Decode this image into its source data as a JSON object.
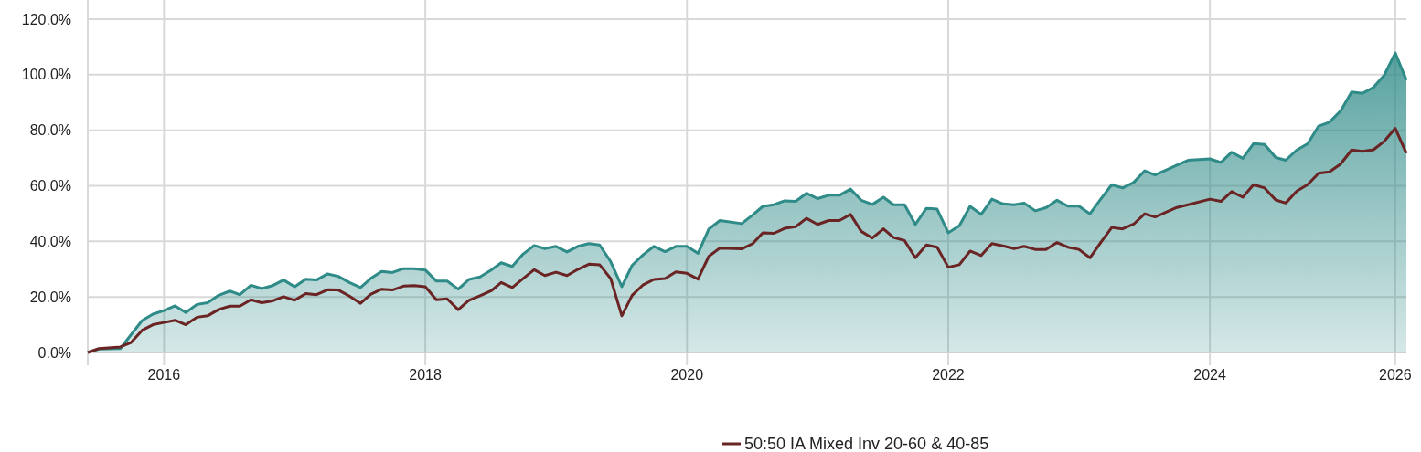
{
  "chart_data": {
    "type": "line",
    "x": [
      "2016-01",
      "2016-02",
      "2016-04",
      "2016-05",
      "2016-06",
      "2016-07",
      "2016-08",
      "2016-09",
      "2016-10",
      "2016-11",
      "2016-12",
      "2017-01",
      "2017-02",
      "2017-03",
      "2017-04",
      "2017-05",
      "2017-06",
      "2017-07",
      "2017-08",
      "2017-09",
      "2017-10",
      "2017-11",
      "2017-12",
      "2018-01",
      "2018-02",
      "2018-03",
      "2018-04",
      "2018-05",
      "2018-06",
      "2018-07",
      "2018-08",
      "2018-09",
      "2018-10",
      "2018-11",
      "2018-12",
      "2019-01",
      "2019-02",
      "2019-03",
      "2019-04",
      "2019-05",
      "2019-06",
      "2019-07",
      "2019-08",
      "2019-09",
      "2019-10",
      "2019-11",
      "2019-12",
      "2020-01",
      "2020-02",
      "2020-03",
      "2020-04",
      "2020-05",
      "2020-06",
      "2020-07",
      "2020-08",
      "2020-09",
      "2020-10",
      "2020-11",
      "2021-01",
      "2021-02",
      "2021-03",
      "2021-04",
      "2021-05",
      "2021-06",
      "2021-07",
      "2021-08",
      "2021-09",
      "2021-10",
      "2021-11",
      "2021-12",
      "2022-01",
      "2022-02",
      "2022-03",
      "2022-04",
      "2022-05",
      "2022-06",
      "2022-07",
      "2022-08",
      "2022-09",
      "2022-10",
      "2022-11",
      "2022-12",
      "2023-01",
      "2023-02",
      "2023-03",
      "2023-04",
      "2023-05",
      "2023-06",
      "2023-07",
      "2023-08",
      "2023-09",
      "2023-10",
      "2023-11",
      "2023-12",
      "2024-01",
      "2024-02",
      "2024-03",
      "2024-05",
      "2024-06",
      "2024-08",
      "2024-09",
      "2024-10",
      "2024-11",
      "2024-12",
      "2025-01",
      "2025-02",
      "2025-03",
      "2025-04",
      "2025-05",
      "2025-06",
      "2025-07",
      "2025-08",
      "2025-09",
      "2025-10",
      "2025-11",
      "2025-12",
      "2026-01",
      "2026-02"
    ],
    "series": [
      {
        "type": "area",
        "color": "#2e8b88",
        "values": [
          0,
          1.2,
          1.4,
          6.4,
          11.5,
          13.8,
          15.1,
          16.8,
          14.4,
          17.3,
          17.9,
          20.6,
          22.1,
          20.8,
          24.2,
          23.0,
          24.1,
          26.1,
          23.7,
          26.4,
          26.1,
          28.3,
          27.4,
          25.2,
          23.4,
          26.6,
          29.2,
          28.8,
          30.2,
          30.2,
          29.7,
          25.7,
          25.7,
          22.8,
          26.3,
          27.2,
          29.7,
          32.3,
          31.0,
          35.4,
          38.5,
          37.4,
          38.2,
          36.2,
          38.2,
          39.2,
          38.7,
          32.7,
          23.7,
          31.4,
          35.2,
          38.2,
          36.3,
          38.2,
          38.2,
          35.7,
          44.4,
          47.5,
          46.4,
          49.5,
          52.6,
          53.2,
          54.6,
          54.4,
          57.3,
          55.4,
          56.6,
          56.6,
          58.8,
          54.8,
          53.3,
          55.9,
          53.2,
          53.2,
          46.1,
          51.9,
          51.6,
          43.1,
          45.6,
          52.6,
          49.7,
          55.2,
          53.5,
          53.2,
          53.8,
          51.0,
          52.1,
          54.8,
          52.7,
          52.7,
          49.9,
          55.2,
          60.4,
          59.2,
          61.2,
          65.4,
          63.9,
          67.4,
          69.2,
          69.7,
          68.4,
          72.1,
          69.9,
          75.2,
          74.9,
          70.2,
          69.2,
          72.9,
          75.1,
          81.5,
          82.9,
          86.9,
          93.8,
          93.3,
          95.4,
          99.8,
          107.8,
          98
        ]
      },
      {
        "name": "50:50 IA Mixed Inv 20-60 & 40-85",
        "color": "#6b2424",
        "values": [
          0,
          1.4,
          2.0,
          3.6,
          8.0,
          10.0,
          10.8,
          11.6,
          10.0,
          12.7,
          13.2,
          15.5,
          16.7,
          16.7,
          19.0,
          17.9,
          18.6,
          20.1,
          18.8,
          21.2,
          20.8,
          22.6,
          22.5,
          20.3,
          17.7,
          20.9,
          22.8,
          22.5,
          23.9,
          24.1,
          23.7,
          19.0,
          19.3,
          15.4,
          18.8,
          20.4,
          22.2,
          25.2,
          23.4,
          26.6,
          29.8,
          27.7,
          28.9,
          27.7,
          29.9,
          31.8,
          31.6,
          26.6,
          13.2,
          20.6,
          24.4,
          26.3,
          26.6,
          29.0,
          28.5,
          26.4,
          34.6,
          37.6,
          37.3,
          39.2,
          43.1,
          42.9,
          44.7,
          45.3,
          48.3,
          46.1,
          47.5,
          47.5,
          49.7,
          43.6,
          41.2,
          44.5,
          41.4,
          40.3,
          34.1,
          38.7,
          37.9,
          30.7,
          31.6,
          36.5,
          34.9,
          39.2,
          38.4,
          37.4,
          38.2,
          37.1,
          37.1,
          39.6,
          37.9,
          37.1,
          34.1,
          39.6,
          45.0,
          44.5,
          46.2,
          49.9,
          48.8,
          52.2,
          53.2,
          55.2,
          54.4,
          57.9,
          55.9,
          60.4,
          59.2,
          54.9,
          53.8,
          58.1,
          60.4,
          64.5,
          65.0,
          67.8,
          72.9,
          72.4,
          73.0,
          76.0,
          80.7,
          71.7
        ]
      }
    ],
    "xlim": [
      "2016-01",
      "2026-02"
    ],
    "xticks": [
      {
        "value": "2016-08",
        "label": "2016"
      },
      {
        "value": "2018-08",
        "label": "2018"
      },
      {
        "value": "2020-08",
        "label": "2020"
      },
      {
        "value": "2022-08",
        "label": "2022"
      },
      {
        "value": "2024-08",
        "label": "2024"
      },
      {
        "value": "2026-01",
        "label": "2026"
      }
    ],
    "ylim": [
      0,
      120
    ],
    "yticks": [
      {
        "value": 0,
        "label": "0.0%"
      },
      {
        "value": 20,
        "label": "20.0%"
      },
      {
        "value": 40,
        "label": "40.0%"
      },
      {
        "value": 60,
        "label": "60.0%"
      },
      {
        "value": 80,
        "label": "80.0%"
      },
      {
        "value": 100,
        "label": "100.0%"
      },
      {
        "value": 120,
        "label": "120.0%"
      }
    ],
    "grid": true,
    "legend": "bottom",
    "line_style": "solid",
    "marker": "none"
  }
}
